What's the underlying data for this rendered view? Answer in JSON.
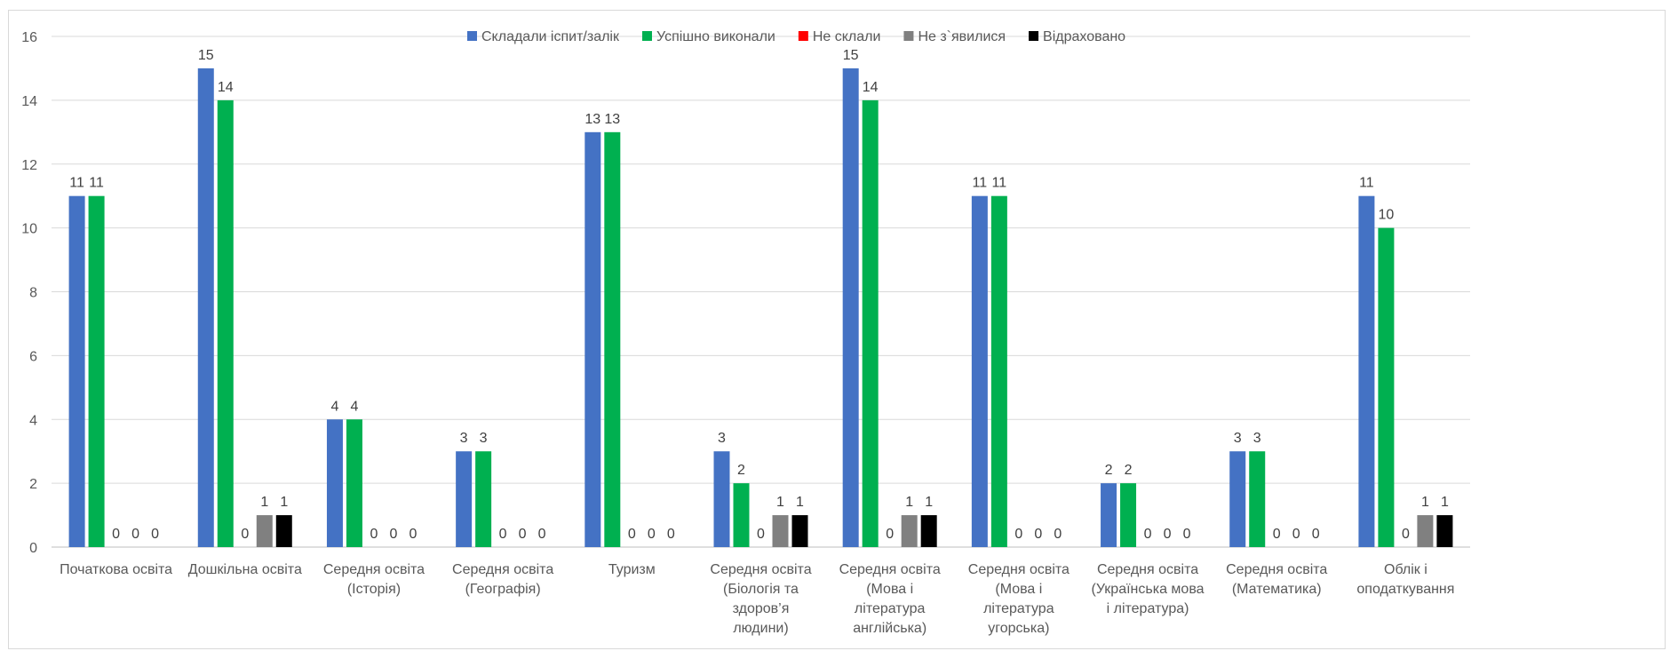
{
  "chart_data": {
    "type": "bar",
    "title": "",
    "xlabel": "",
    "ylabel": "",
    "ylim": [
      0,
      16
    ],
    "yticks": [
      0,
      2,
      4,
      6,
      8,
      10,
      12,
      14,
      16
    ],
    "grid": true,
    "legend_position": "top",
    "categories": [
      [
        "Початкова освіта"
      ],
      [
        "Дошкільна освіта"
      ],
      [
        "Середня освіта",
        "(Історія)"
      ],
      [
        "Середня освіта",
        "(Географія)"
      ],
      [
        "Туризм"
      ],
      [
        "Середня освіта",
        "(Біологія та",
        "здоров’я",
        "людини)"
      ],
      [
        "Середня освіта",
        "(Мова і",
        "література",
        "англійська)"
      ],
      [
        "Середня освіта",
        "(Мова і",
        "література",
        "угорська)"
      ],
      [
        "Середня освіта",
        "(Українська мова",
        "і література)"
      ],
      [
        "Середня освіта",
        "(Математика)"
      ],
      [
        "Облік і",
        "оподаткування"
      ]
    ],
    "series": [
      {
        "name": "Складали іспит/залік",
        "color": "#4472c4",
        "values": [
          11,
          15,
          4,
          3,
          13,
          3,
          15,
          11,
          2,
          3,
          11
        ]
      },
      {
        "name": "Успішно виконали",
        "color": "#00b050",
        "values": [
          11,
          14,
          4,
          3,
          13,
          2,
          14,
          11,
          2,
          3,
          10
        ]
      },
      {
        "name": "Не склали",
        "color": "#ff0000",
        "values": [
          0,
          0,
          0,
          0,
          0,
          0,
          0,
          0,
          0,
          0,
          0
        ]
      },
      {
        "name": "Не з`явилися",
        "color": "#808080",
        "values": [
          0,
          1,
          0,
          0,
          0,
          1,
          1,
          0,
          0,
          0,
          1
        ]
      },
      {
        "name": "Відраховано",
        "color": "#000000",
        "values": [
          0,
          1,
          0,
          0,
          0,
          1,
          1,
          0,
          0,
          0,
          1
        ]
      }
    ],
    "data_labels": [
      [
        "11",
        "11",
        "0",
        "0",
        "0"
      ],
      [
        "15",
        "14",
        "0",
        "1",
        "1"
      ],
      [
        "4",
        "4",
        "0",
        "0",
        "0"
      ],
      [
        "3",
        "3",
        "0",
        "0",
        "0"
      ],
      [
        "13",
        "13",
        "0",
        "0",
        "0"
      ],
      [
        "3",
        "2",
        "0",
        "1",
        "1"
      ],
      [
        "15",
        "14",
        "0",
        "1",
        "1"
      ],
      [
        "11",
        "11",
        "0",
        "0",
        "0"
      ],
      [
        "2",
        "2",
        "0",
        "0",
        "0"
      ],
      [
        "3",
        "3",
        "0",
        "0",
        "0"
      ],
      [
        "11",
        "10",
        "0",
        "1",
        "1"
      ]
    ]
  }
}
